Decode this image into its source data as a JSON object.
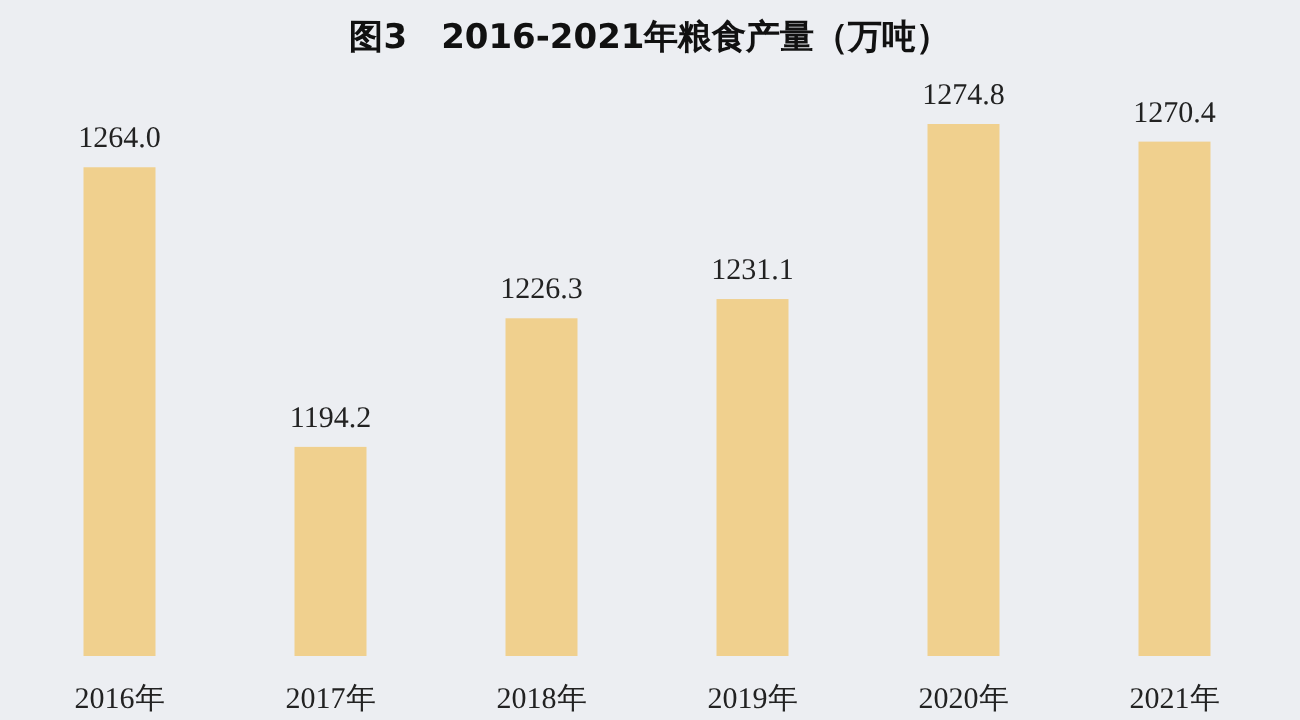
{
  "chart_data": {
    "type": "bar",
    "title": "图3　2016-2021年粮食产量（万吨）",
    "categories": [
      "2016年",
      "2017年",
      "2018年",
      "2019年",
      "2020年",
      "2021年"
    ],
    "values": [
      1264.0,
      1194.2,
      1226.3,
      1231.1,
      1274.8,
      1270.4
    ],
    "value_labels": [
      "1264.0",
      "1194.2",
      "1226.3",
      "1231.1",
      "1274.8",
      "1270.4"
    ],
    "color": "#f0d08e",
    "ylim": [
      1142,
      1274.8
    ]
  }
}
